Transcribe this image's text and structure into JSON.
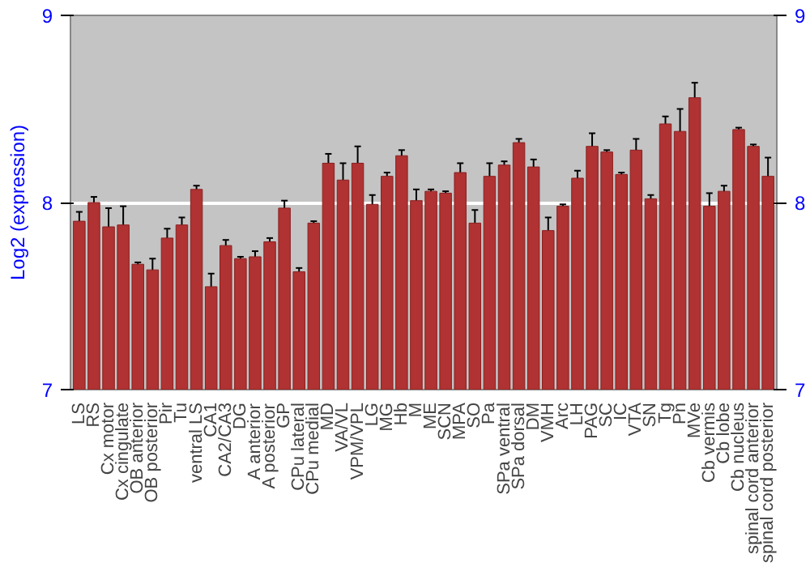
{
  "chart_data": {
    "type": "bar",
    "ylabel": "Log2 (expression)",
    "categories": [
      "LS",
      "RS",
      "Cx motor",
      "Cx cingulate",
      "OB anterior",
      "OB posterior",
      "Pir",
      "Tu",
      "ventral LS",
      "CA1",
      "CA2/CA3",
      "DG",
      "A anterior",
      "A posterior",
      "GP",
      "CPu lateral",
      "CPu medial",
      "MD",
      "VA/VL",
      "VPM/VPL",
      "LG",
      "MG",
      "Hb",
      "M",
      "ME",
      "SCN",
      "MPA",
      "SO",
      "Pa",
      "SPa ventral",
      "SPa dorsal",
      "DM",
      "VMH",
      "Arc",
      "LH",
      "PAG",
      "SC",
      "IC",
      "VTA",
      "SN",
      "Tg",
      "Pn",
      "MVe",
      "Cb vermis",
      "Cb lobe",
      "Cb nucleus",
      "spinal cord anterior",
      "spinal cord posterior"
    ],
    "values": [
      7.9,
      8.0,
      7.87,
      7.88,
      7.67,
      7.64,
      7.81,
      7.88,
      8.07,
      7.55,
      7.77,
      7.7,
      7.71,
      7.79,
      7.97,
      7.63,
      7.89,
      8.21,
      8.12,
      8.21,
      7.99,
      8.14,
      8.25,
      8.01,
      8.06,
      8.05,
      8.16,
      7.89,
      8.14,
      8.2,
      8.32,
      8.19,
      7.85,
      7.98,
      8.13,
      8.3,
      8.27,
      8.15,
      8.28,
      8.02,
      8.42,
      8.38,
      8.56,
      7.98,
      8.06,
      8.39,
      8.3,
      8.14
    ],
    "errors": [
      0.05,
      0.03,
      0.1,
      0.1,
      0.01,
      0.06,
      0.05,
      0.04,
      0.02,
      0.07,
      0.03,
      0.01,
      0.03,
      0.02,
      0.04,
      0.02,
      0.01,
      0.05,
      0.09,
      0.09,
      0.05,
      0.02,
      0.03,
      0.06,
      0.01,
      0.01,
      0.05,
      0.07,
      0.07,
      0.02,
      0.02,
      0.04,
      0.07,
      0.01,
      0.04,
      0.07,
      0.01,
      0.01,
      0.06,
      0.02,
      0.04,
      0.12,
      0.08,
      0.07,
      0.03,
      0.01,
      0.01,
      0.1
    ],
    "color": "#b03232",
    "ylim": [
      7,
      9
    ],
    "yticks": [
      7,
      8,
      9
    ],
    "y2lim": [
      7,
      9
    ],
    "y2ticks": [
      7,
      8,
      9
    ],
    "grid": "y"
  }
}
